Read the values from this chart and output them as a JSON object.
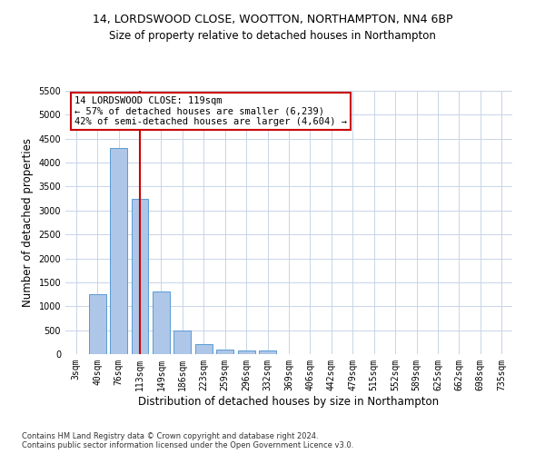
{
  "title_line1": "14, LORDSWOOD CLOSE, WOOTTON, NORTHAMPTON, NN4 6BP",
  "title_line2": "Size of property relative to detached houses in Northampton",
  "xlabel": "Distribution of detached houses by size in Northampton",
  "ylabel": "Number of detached properties",
  "footnote": "Contains HM Land Registry data © Crown copyright and database right 2024.\nContains public sector information licensed under the Open Government Licence v3.0.",
  "bar_color": "#aec6e8",
  "bar_edge_color": "#5a9bd4",
  "vline_color": "#cc0000",
  "vline_x": 3,
  "annotation_box_text": "14 LORDSWOOD CLOSE: 119sqm\n← 57% of detached houses are smaller (6,239)\n42% of semi-detached houses are larger (4,604) →",
  "categories": [
    "3sqm",
    "40sqm",
    "76sqm",
    "113sqm",
    "149sqm",
    "186sqm",
    "223sqm",
    "259sqm",
    "296sqm",
    "332sqm",
    "369sqm",
    "406sqm",
    "442sqm",
    "479sqm",
    "515sqm",
    "552sqm",
    "589sqm",
    "625sqm",
    "662sqm",
    "698sqm",
    "735sqm"
  ],
  "values": [
    0,
    1250,
    4300,
    3250,
    1300,
    500,
    200,
    100,
    75,
    75,
    0,
    0,
    0,
    0,
    0,
    0,
    0,
    0,
    0,
    0,
    0
  ],
  "ylim": [
    0,
    5500
  ],
  "yticks": [
    0,
    500,
    1000,
    1500,
    2000,
    2500,
    3000,
    3500,
    4000,
    4500,
    5000,
    5500
  ],
  "background_color": "#ffffff",
  "grid_color": "#c8d4e8",
  "title_fontsize": 9,
  "subtitle_fontsize": 8.5,
  "xlabel_fontsize": 8.5,
  "ylabel_fontsize": 8.5,
  "tick_fontsize": 7,
  "footnote_fontsize": 6,
  "annot_fontsize": 7.5
}
